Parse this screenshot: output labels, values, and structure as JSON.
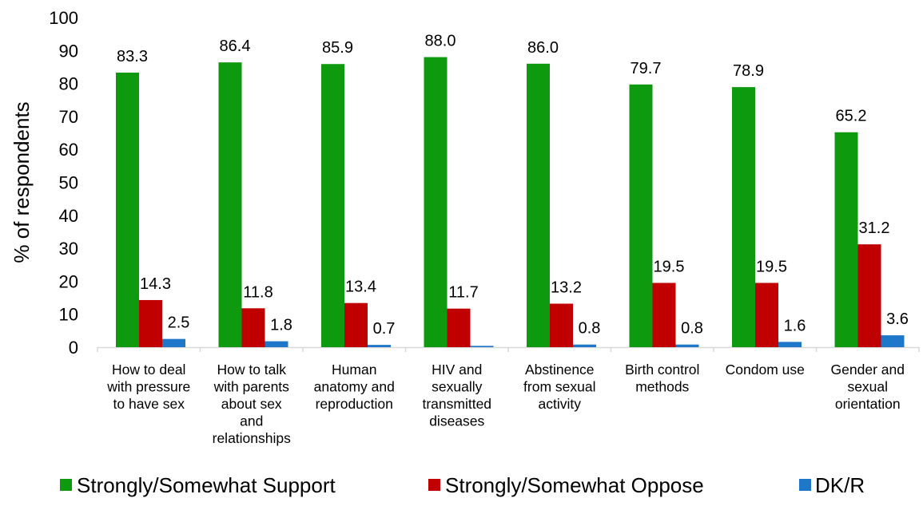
{
  "chart_data": {
    "type": "bar",
    "title": "",
    "xlabel": "",
    "ylabel": "% of respondents",
    "ylim": [
      0,
      100
    ],
    "yticks": [
      0,
      10,
      20,
      30,
      40,
      50,
      60,
      70,
      80,
      90,
      100
    ],
    "grid": false,
    "legend_position": "bottom",
    "categories": [
      [
        "How to deal",
        "with pressure",
        "to have sex"
      ],
      [
        "How to talk",
        "with parents",
        "about sex",
        "and",
        "relationships"
      ],
      [
        "Human",
        "anatomy and",
        "reproduction"
      ],
      [
        "HIV and",
        "sexually",
        "transmitted",
        "diseases"
      ],
      [
        "Abstinence",
        "from sexual",
        "activity"
      ],
      [
        "Birth control",
        "methods"
      ],
      [
        "Condom use"
      ],
      [
        "Gender and",
        "sexual",
        "orientation"
      ]
    ],
    "series": [
      {
        "name": "Strongly/Somewhat Support",
        "color": "#0e9a0e",
        "values": [
          83.3,
          86.4,
          85.9,
          88.0,
          86.0,
          79.7,
          78.9,
          65.2
        ],
        "labels": [
          "83.3",
          "86.4",
          "85.9",
          "88.0",
          "86.0",
          "79.7",
          "78.9",
          "65.2"
        ]
      },
      {
        "name": "Strongly/Somewhat Oppose",
        "color": "#c00000",
        "values": [
          14.3,
          11.8,
          13.4,
          11.7,
          13.2,
          19.5,
          19.5,
          31.2
        ],
        "labels": [
          "14.3",
          "11.8",
          "13.4",
          "11.7",
          "13.2",
          "19.5",
          "19.5",
          "31.2"
        ]
      },
      {
        "name": "DK/R",
        "color": "#1f77c9",
        "values": [
          2.5,
          1.8,
          0.7,
          0.4,
          0.8,
          0.8,
          1.6,
          3.6
        ],
        "labels": [
          "2.5",
          "1.8",
          "0.7",
          "",
          "0.8",
          "0.8",
          "1.6",
          "3.6"
        ]
      }
    ]
  }
}
